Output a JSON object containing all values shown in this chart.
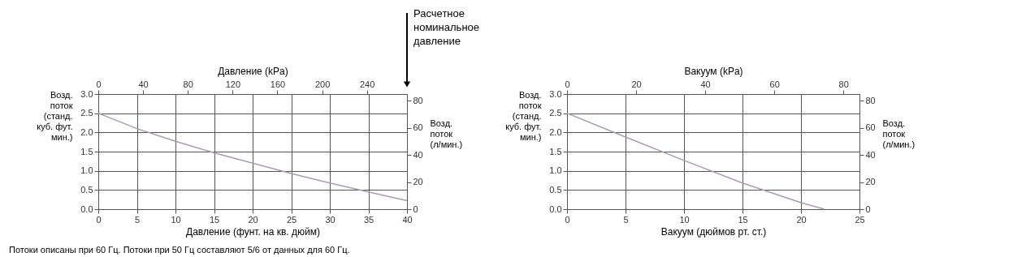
{
  "chart_data": [
    {
      "type": "line",
      "xlabel": "Давление (фунт. на кв. дюйм)",
      "x2label": "Давление (kPa)",
      "ylabel": "Возд.\nпоток\n(станд.\n куб. фут.\n мин.)",
      "y2label": "Возд.\nпоток\n(л/мин.)",
      "x": [
        0,
        5,
        10,
        15,
        20,
        25,
        30,
        35,
        40
      ],
      "series": [
        {
          "color": "#a99cb0",
          "values": [
            2.5,
            2.1,
            1.77,
            1.47,
            1.2,
            0.93,
            0.68,
            0.45,
            0.22
          ]
        }
      ],
      "xlim": [
        0,
        40
      ],
      "xticks": [
        0,
        5,
        10,
        15,
        20,
        25,
        30,
        35,
        40
      ],
      "ylim": [
        0,
        3
      ],
      "yticks": [
        {
          "value": 0,
          "label": "0.0"
        },
        0.5,
        {
          "value": 1,
          "label": "1.0"
        },
        1.5,
        {
          "value": 2,
          "label": "2.0"
        },
        2.5,
        {
          "value": 3,
          "label": "3.0"
        }
      ],
      "x2lim": [
        0,
        275.8
      ],
      "x2ticks": [
        0,
        40,
        80,
        120,
        160,
        200,
        240
      ],
      "y2lim": [
        0,
        85
      ],
      "y2ticks": [
        0,
        20,
        40,
        60,
        80
      ],
      "grid": true,
      "annotations": [
        "Расчетное\nноминальное\nдавление",
        "Потоки описаны при 60 Гц. Потоки при 50 Гц составляют 5/6 от данных для 60 Гц."
      ]
    },
    {
      "type": "line",
      "xlabel": "Вакуум (дюймов рт. ст.)",
      "x2label": "Вакуум (kPa)",
      "ylabel": "Возд.\nпоток\n(станд.\n куб. фут.\n мин.)",
      "y2label": "Возд.\nпоток\n(л/мин.)",
      "x": [
        0,
        5,
        10,
        15,
        20,
        22
      ],
      "series": [
        {
          "color": "#a99cb0",
          "values": [
            2.5,
            1.88,
            1.27,
            0.68,
            0.17,
            0.0
          ]
        }
      ],
      "xlim": [
        0,
        25
      ],
      "xticks": [
        0,
        5,
        10,
        15,
        20,
        25
      ],
      "ylim": [
        0,
        3
      ],
      "yticks": [
        {
          "value": 0,
          "label": "0.0"
        },
        0.5,
        {
          "value": 1,
          "label": "1.0"
        },
        1.5,
        {
          "value": 2,
          "label": "2.0"
        },
        2.5,
        {
          "value": 3,
          "label": "3.0"
        }
      ],
      "x2lim": [
        0,
        84.66
      ],
      "x2ticks": [
        0,
        20,
        40,
        60,
        80
      ],
      "y2lim": [
        0,
        85
      ],
      "y2ticks": [
        0,
        20,
        40,
        60,
        80
      ],
      "grid": true
    }
  ]
}
